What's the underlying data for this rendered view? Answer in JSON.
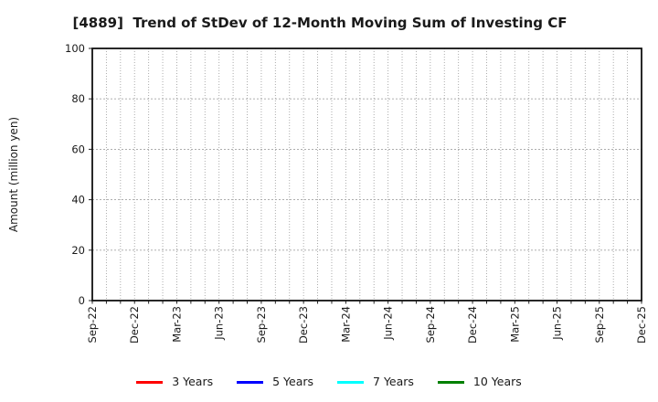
{
  "chart_data": {
    "type": "line",
    "title": "[4889]  Trend of StDev of 12-Month Moving Sum of Investing CF",
    "ylabel": "Amount (million yen)",
    "ylim": [
      0,
      100
    ],
    "yticks": [
      0,
      20,
      40,
      60,
      80,
      100
    ],
    "x_axis": {
      "tick_labels": [
        "Sep-22",
        "Dec-22",
        "Mar-23",
        "Jun-23",
        "Sep-23",
        "Dec-23",
        "Mar-24",
        "Jun-24",
        "Sep-24",
        "Dec-24",
        "Mar-25",
        "Jun-25",
        "Sep-25",
        "Dec-25"
      ],
      "label_every_months": 3,
      "total_months": 40,
      "tick_rotation_deg": 90
    },
    "grid": {
      "visible": true,
      "style": "dotted",
      "color": "#a3a3a3"
    },
    "axis_frame_color": "#111111",
    "tick_label_color": "#1a1a1a",
    "series": [
      {
        "name": "3 Years",
        "color": "#ff0000",
        "values": []
      },
      {
        "name": "5 Years",
        "color": "#0000ff",
        "values": []
      },
      {
        "name": "7 Years",
        "color": "#00ffff",
        "values": []
      },
      {
        "name": "10 Years",
        "color": "#008000",
        "values": []
      }
    ],
    "legend": {
      "position": "bottom-center"
    },
    "plot_area_empty": true
  }
}
